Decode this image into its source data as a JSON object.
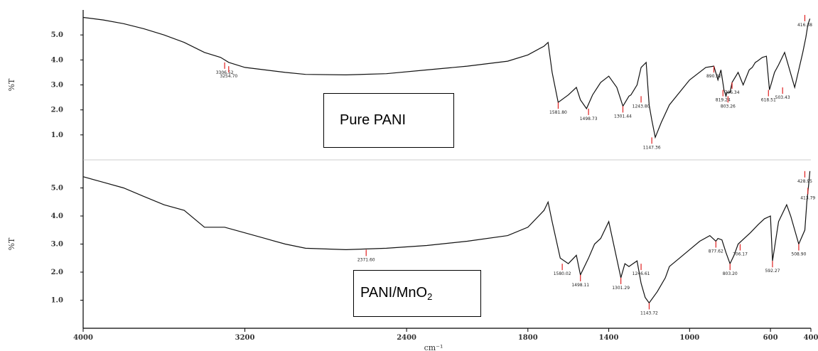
{
  "chart_data": [
    {
      "type": "line",
      "title": "",
      "ylabel": "%T",
      "xlim": [
        4000,
        400
      ],
      "ylim": [
        0,
        6
      ],
      "y_ticks": [
        "1.0",
        "2.0",
        "3.0",
        "4.0",
        "5.0"
      ],
      "annotation": "Pure PANI",
      "series": [
        {
          "x": [
            4000,
            3900,
            3800,
            3700,
            3600,
            3500,
            3400,
            3320,
            3280,
            3200,
            3100,
            3000,
            2900,
            2700,
            2500,
            2300,
            2100,
            1900,
            1800,
            1720,
            1700,
            1680,
            1650,
            1600,
            1560,
            1540,
            1510,
            1480,
            1440,
            1400,
            1360,
            1330,
            1300,
            1290,
            1260,
            1240,
            1215,
            1200,
            1187,
            1170,
            1140,
            1100,
            1000,
            920,
            880,
            860,
            845,
            830,
            820,
            815,
            800,
            790,
            760,
            735,
            705,
            690,
            675,
            665,
            640,
            620,
            605,
            580,
            560,
            530,
            480,
            440,
            425,
            415,
            405
          ],
          "y": [
            5.7,
            5.6,
            5.45,
            5.25,
            5.0,
            4.7,
            4.3,
            4.1,
            3.9,
            3.7,
            3.6,
            3.5,
            3.42,
            3.4,
            3.45,
            3.6,
            3.75,
            3.95,
            4.2,
            4.55,
            4.7,
            3.5,
            2.3,
            2.6,
            2.9,
            2.4,
            2.05,
            2.6,
            3.1,
            3.35,
            2.9,
            2.15,
            2.55,
            2.6,
            3.0,
            3.7,
            3.9,
            2.2,
            1.6,
            0.9,
            1.5,
            2.2,
            3.2,
            3.7,
            3.75,
            3.2,
            3.6,
            2.8,
            2.55,
            2.7,
            2.7,
            3.1,
            3.5,
            3.0,
            3.6,
            3.7,
            3.9,
            3.95,
            4.1,
            4.15,
            2.8,
            3.5,
            3.8,
            4.3,
            2.9,
            4.3,
            4.9,
            5.4,
            5.65
          ]
        }
      ],
      "peak_labels": [
        {
          "x": 3300,
          "y": 3.9,
          "text": "3306.52"
        },
        {
          "x": 3280,
          "y": 3.75,
          "text": "3254.70"
        },
        {
          "x": 1650,
          "y": 2.3,
          "text": "1581.80"
        },
        {
          "x": 1500,
          "y": 2.05,
          "text": "1498.73"
        },
        {
          "x": 1330,
          "y": 2.15,
          "text": "1301.44"
        },
        {
          "x": 1240,
          "y": 2.55,
          "text": "1243.80"
        },
        {
          "x": 1187,
          "y": 0.9,
          "text": "1147.36"
        },
        {
          "x": 880,
          "y": 3.75,
          "text": "890.32"
        },
        {
          "x": 835,
          "y": 2.8,
          "text": "819.24"
        },
        {
          "x": 810,
          "y": 2.55,
          "text": "803.26"
        },
        {
          "x": 790,
          "y": 3.1,
          "text": "706.34"
        },
        {
          "x": 610,
          "y": 2.8,
          "text": "618.51"
        },
        {
          "x": 540,
          "y": 2.9,
          "text": "503.43"
        },
        {
          "x": 430,
          "y": 5.8,
          "text": "416.38"
        }
      ]
    },
    {
      "type": "line",
      "title": "",
      "ylabel": "%T",
      "xlabel": "cm⁻¹",
      "xlim": [
        4000,
        400
      ],
      "ylim": [
        0,
        6
      ],
      "x_ticks": [
        "4000",
        "3200",
        "2400",
        "1800",
        "1400",
        "1000",
        "600",
        "400"
      ],
      "y_ticks": [
        "1.0",
        "2.0",
        "3.0",
        "4.0",
        "5.0"
      ],
      "annotation": "PANI/MnO₂",
      "series": [
        {
          "x": [
            4000,
            3900,
            3800,
            3700,
            3600,
            3500,
            3400,
            3300,
            3200,
            3100,
            3000,
            2900,
            2700,
            2500,
            2300,
            2100,
            1900,
            1800,
            1720,
            1700,
            1680,
            1640,
            1600,
            1560,
            1540,
            1500,
            1470,
            1440,
            1400,
            1340,
            1320,
            1300,
            1280,
            1260,
            1240,
            1220,
            1200,
            1160,
            1120,
            1100,
            1050,
            1000,
            950,
            900,
            870,
            860,
            840,
            820,
            800,
            780,
            760,
            700,
            660,
            630,
            600,
            590,
            560,
            520,
            500,
            460,
            430,
            420,
            410,
            405
          ],
          "y": [
            5.4,
            5.2,
            5.0,
            4.7,
            4.4,
            4.2,
            3.6,
            3.6,
            3.4,
            3.2,
            3.0,
            2.85,
            2.8,
            2.85,
            2.95,
            3.1,
            3.3,
            3.6,
            4.2,
            4.5,
            3.8,
            2.5,
            2.3,
            2.6,
            1.9,
            2.5,
            3.0,
            3.2,
            3.8,
            1.8,
            2.3,
            2.2,
            2.3,
            2.4,
            1.6,
            1.1,
            0.9,
            1.3,
            1.8,
            2.2,
            2.5,
            2.8,
            3.1,
            3.3,
            3.1,
            3.2,
            3.15,
            2.7,
            2.3,
            2.6,
            3.0,
            3.4,
            3.7,
            3.9,
            4.0,
            2.4,
            3.8,
            4.4,
            4.0,
            3.0,
            3.5,
            4.5,
            5.2,
            5.6
          ]
        }
      ],
      "peak_labels": [
        {
          "x": 2600,
          "y": 2.8,
          "text": "2371.60"
        },
        {
          "x": 1630,
          "y": 2.3,
          "text": "1580.02"
        },
        {
          "x": 1540,
          "y": 1.9,
          "text": "1498.11"
        },
        {
          "x": 1340,
          "y": 1.8,
          "text": "1301.29"
        },
        {
          "x": 1240,
          "y": 2.3,
          "text": "1246.61"
        },
        {
          "x": 1200,
          "y": 0.9,
          "text": "1143.72"
        },
        {
          "x": 870,
          "y": 3.1,
          "text": "877.62"
        },
        {
          "x": 800,
          "y": 2.3,
          "text": "803.20"
        },
        {
          "x": 750,
          "y": 3.0,
          "text": "706.17"
        },
        {
          "x": 590,
          "y": 2.4,
          "text": "592.27"
        },
        {
          "x": 460,
          "y": 3.0,
          "text": "508.90"
        },
        {
          "x": 430,
          "y": 5.6,
          "text": "428.95"
        },
        {
          "x": 415,
          "y": 5.0,
          "text": "413.79"
        }
      ]
    }
  ],
  "annotations": {
    "top_box": "Pure PANI",
    "bottom_box_main": "PANI/MnO",
    "bottom_box_sub": "2"
  }
}
